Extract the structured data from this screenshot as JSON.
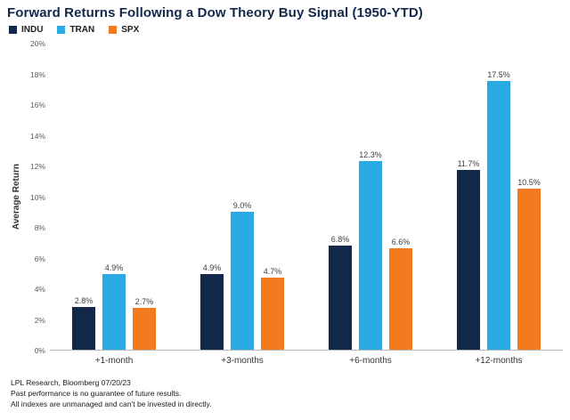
{
  "chart_data": {
    "type": "bar",
    "title": "Forward Returns Following a Dow Theory Buy Signal (1950-YTD)",
    "ylabel": "Average Return",
    "xlabel": "",
    "ylim": [
      0,
      20
    ],
    "ytick_step": 2,
    "ytick_suffix": "%",
    "grid": false,
    "legend_position": "top-left",
    "categories": [
      "+1-month",
      "+3-months",
      "+6-months",
      "+12-months"
    ],
    "series": [
      {
        "name": "INDU",
        "color": "#14284b",
        "values": [
          2.8,
          4.9,
          6.8,
          11.7
        ]
      },
      {
        "name": "TRAN",
        "color": "#29aae2",
        "values": [
          4.9,
          9.0,
          12.3,
          17.5
        ]
      },
      {
        "name": "SPX",
        "color": "#f47a20",
        "values": [
          2.7,
          4.7,
          6.6,
          10.5
        ]
      }
    ],
    "value_label_suffix": "%"
  },
  "footer": {
    "source": "LPL Research, Bloomberg 07/20/23",
    "note1": "Past performance is no guarantee of future results.",
    "note2": "All indexes are unmanaged and can't be invested in directly."
  },
  "colors": {
    "title": "#14284b",
    "indu": "#14284b",
    "tran": "#29aae2",
    "spx": "#f47a20",
    "axis_text": "#595959",
    "baseline": "#b7b7b7"
  }
}
